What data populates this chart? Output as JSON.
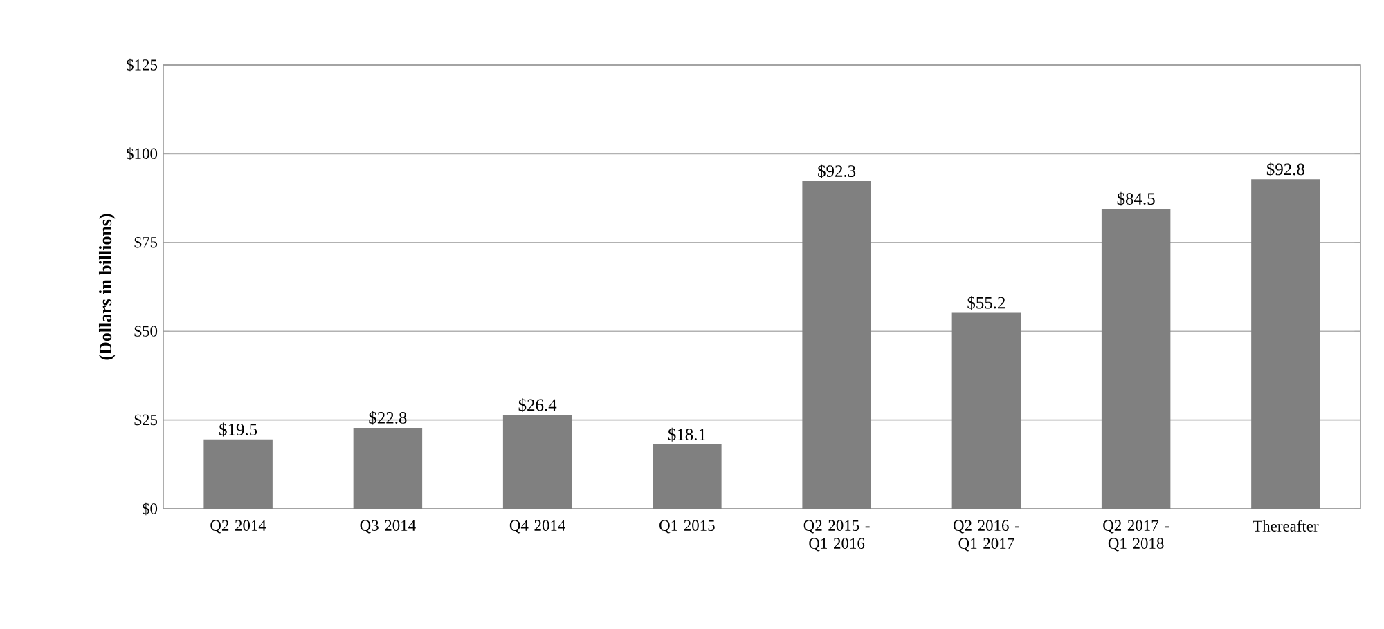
{
  "chart_data": {
    "type": "bar",
    "ylabel": "(Dollars in billions)",
    "categories": [
      "Q2 2014",
      "Q3 2014",
      "Q4 2014",
      "Q1 2015",
      "Q2 2015 - Q1 2016",
      "Q2 2016 - Q1 2017",
      "Q2 2017 - Q1 2018",
      "Thereafter"
    ],
    "values": [
      19.5,
      22.8,
      26.4,
      18.1,
      92.3,
      55.2,
      84.5,
      92.8
    ],
    "value_labels": [
      "$19.5",
      "$22.8",
      "$26.4",
      "$18.1",
      "$92.3",
      "$55.2",
      "$84.5",
      "$92.8"
    ],
    "color": "#808080",
    "ylim": [
      0,
      125
    ],
    "yticks": [
      {
        "value": 0,
        "label": "$0"
      },
      {
        "value": 25,
        "label": "$25"
      },
      {
        "value": 50,
        "label": "$50"
      },
      {
        "value": 75,
        "label": "$75"
      },
      {
        "value": 100,
        "label": "$100"
      },
      {
        "value": 125,
        "label": "$125"
      }
    ],
    "grid": "y"
  }
}
